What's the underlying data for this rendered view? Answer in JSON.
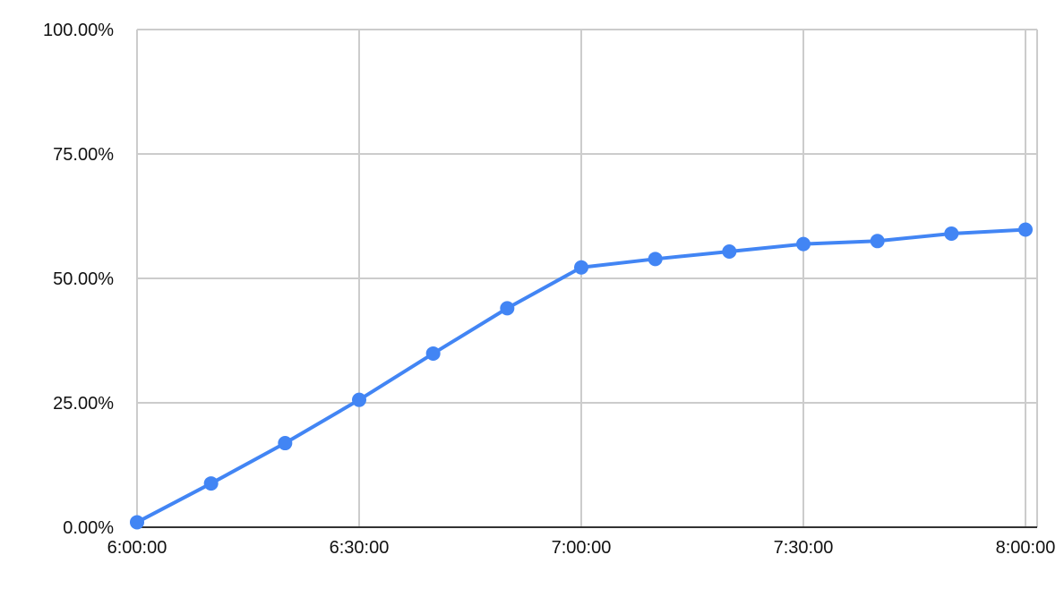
{
  "chart_data": {
    "type": "line",
    "x": [
      "6:00:00",
      "6:10:00",
      "6:20:00",
      "6:30:00",
      "6:40:00",
      "6:50:00",
      "7:00:00",
      "7:10:00",
      "7:20:00",
      "7:30:00",
      "7:40:00",
      "7:50:00",
      "8:00:00"
    ],
    "series": [
      {
        "values": [
          1.0,
          8.8,
          16.9,
          25.6,
          34.9,
          44.0,
          52.2,
          53.9,
          55.4,
          56.9,
          57.5,
          59.0,
          59.8
        ],
        "color": "#4285f4"
      }
    ],
    "x_ticks": [
      "6:00:00",
      "6:30:00",
      "7:00:00",
      "7:30:00",
      "8:00:00"
    ],
    "y_ticks": [
      "0.00%",
      "25.00%",
      "50.00%",
      "75.00%",
      "100.00%"
    ],
    "ylim": [
      0,
      100
    ],
    "title": "",
    "xlabel": "",
    "ylabel": "",
    "grid": true,
    "legend": "none"
  }
}
